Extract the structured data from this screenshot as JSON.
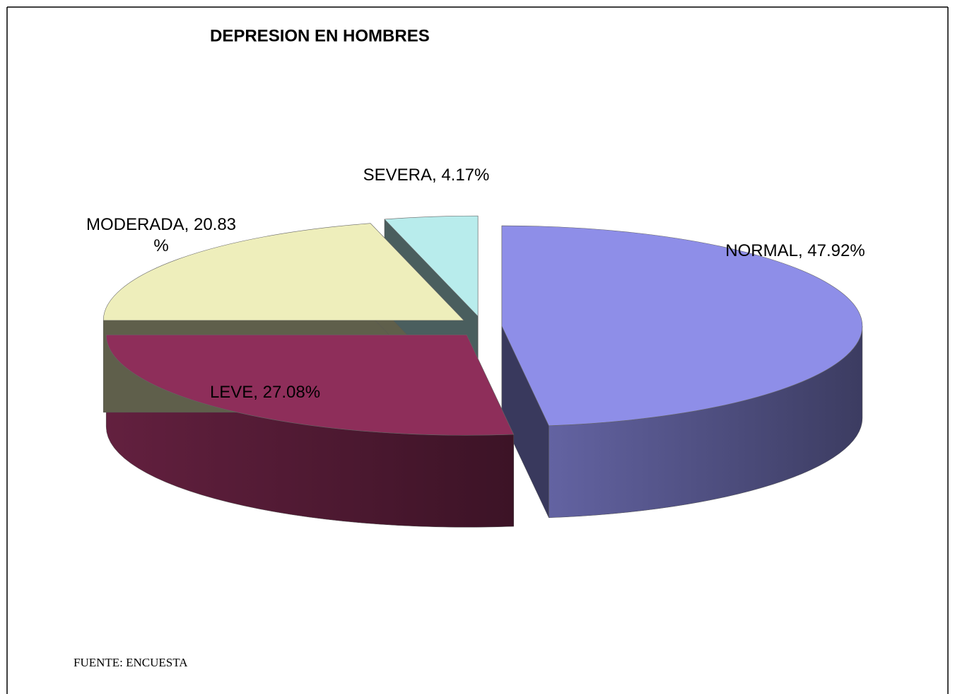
{
  "chart_data": {
    "type": "pie",
    "title": "DEPRESION EN HOMBRES",
    "values": [
      47.92,
      27.08,
      20.83,
      4.17
    ],
    "value_labels": [
      "NORMAL, 47.92%",
      "LEVE, 27.08%",
      "MODERADA, 20.83 %",
      "SEVERA, 4.17%"
    ],
    "colors": [
      "#8e8ee8",
      "#8e2e5a",
      "#eeeebb",
      "#b8ecec"
    ],
    "source": "FUENTE: ENCUESTA"
  }
}
